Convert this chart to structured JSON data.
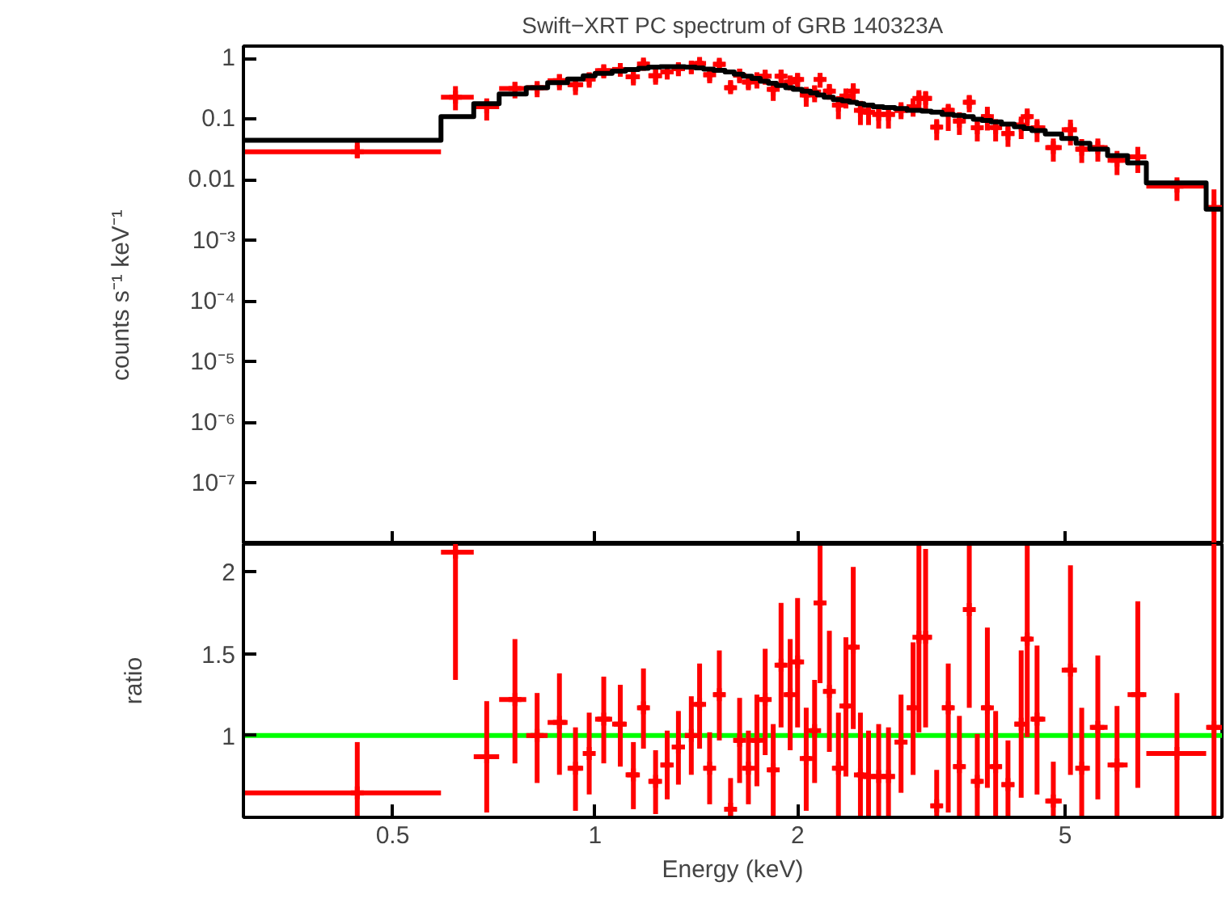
{
  "chart_data": [
    {
      "type": "scatter",
      "title": "Swift−XRT PC spectrum of GRB 140323A",
      "ylabel": "counts s⁻¹ keV⁻¹",
      "log": "xy",
      "grid": false,
      "tick_labels": "y",
      "xlim": [
        0.3,
        8.55
      ],
      "xticks": [
        0.5,
        1,
        2,
        5
      ],
      "ylim": [
        1e-08,
        1.6
      ],
      "yticks": [
        1,
        0.1,
        0.01,
        {
          "value": 0.001,
          "label": "10⁻³"
        },
        {
          "value": 0.0001,
          "label": "10⁻⁴"
        },
        {
          "value": 1e-05,
          "label": "10⁻⁵"
        },
        {
          "value": 1e-06,
          "label": "10⁻⁶"
        },
        {
          "value": 1e-07,
          "label": "10⁻⁷"
        }
      ],
      "x": [
        0.443,
        0.62,
        0.69,
        0.76,
        0.82,
        0.885,
        0.935,
        0.98,
        1.03,
        1.09,
        1.14,
        1.18,
        1.23,
        1.28,
        1.33,
        1.39,
        1.43,
        1.48,
        1.53,
        1.59,
        1.64,
        1.69,
        1.74,
        1.79,
        1.84,
        1.89,
        1.95,
        2.0,
        2.06,
        2.12,
        2.16,
        2.23,
        2.3,
        2.36,
        2.42,
        2.48,
        2.55,
        2.64,
        2.73,
        2.85,
        2.97,
        3.03,
        3.1,
        3.22,
        3.35,
        3.48,
        3.6,
        3.7,
        3.83,
        3.94,
        4.11,
        4.3,
        4.39,
        4.54,
        4.8,
        5.09,
        5.29,
        5.59,
        5.97,
        6.41,
        7.33,
        8.32
      ],
      "series": [
        {
          "color": "#ff0000",
          "marker": "cross",
          "values": [
            0.029,
            0.23,
            0.16,
            0.32,
            0.33,
            0.43,
            0.37,
            0.46,
            0.63,
            0.66,
            0.5,
            0.81,
            0.52,
            0.6,
            0.68,
            0.72,
            0.83,
            0.54,
            0.8,
            0.33,
            0.53,
            0.41,
            0.46,
            0.51,
            0.31,
            0.51,
            0.41,
            0.45,
            0.25,
            0.28,
            0.45,
            0.29,
            0.17,
            0.24,
            0.29,
            0.14,
            0.13,
            0.12,
            0.12,
            0.14,
            0.16,
            0.22,
            0.22,
            0.074,
            0.14,
            0.093,
            0.19,
            0.072,
            0.11,
            0.073,
            0.058,
            0.08,
            0.11,
            0.072,
            0.034,
            0.067,
            0.032,
            0.034,
            0.021,
            0.024,
            0.0079,
            0.0035
          ],
          "errors": [
            [
              0.023,
              0.043
            ],
            [
              0.14,
              0.35
            ],
            [
              0.095,
              0.22
            ],
            [
              0.22,
              0.41
            ],
            [
              0.23,
              0.42
            ],
            [
              0.3,
              0.55
            ],
            [
              0.25,
              0.48
            ],
            [
              0.33,
              0.59
            ],
            [
              0.47,
              0.78
            ],
            [
              0.5,
              0.81
            ],
            [
              0.36,
              0.63
            ],
            [
              0.63,
              0.97
            ],
            [
              0.37,
              0.66
            ],
            [
              0.45,
              0.75
            ],
            [
              0.51,
              0.84
            ],
            [
              0.55,
              0.89
            ],
            [
              0.64,
              1.0
            ],
            [
              0.39,
              0.68
            ],
            [
              0.62,
              0.97
            ],
            [
              0.27,
              0.44
            ],
            [
              0.39,
              0.68
            ],
            [
              0.3,
              0.53
            ],
            [
              0.32,
              0.59
            ],
            [
              0.37,
              0.64
            ],
            [
              0.2,
              0.42
            ],
            [
              0.38,
              0.65
            ],
            [
              0.3,
              0.52
            ],
            [
              0.33,
              0.57
            ],
            [
              0.16,
              0.34
            ],
            [
              0.19,
              0.36
            ],
            [
              0.33,
              0.57
            ],
            [
              0.21,
              0.38
            ],
            [
              0.1,
              0.24
            ],
            [
              0.15,
              0.32
            ],
            [
              0.2,
              0.39
            ],
            [
              0.08,
              0.2
            ],
            [
              0.08,
              0.18
            ],
            [
              0.07,
              0.17
            ],
            [
              0.07,
              0.16
            ],
            [
              0.1,
              0.19
            ],
            [
              0.11,
              0.22
            ],
            [
              0.14,
              0.3
            ],
            [
              0.14,
              0.29
            ],
            [
              0.045,
              0.1
            ],
            [
              0.064,
              0.17
            ],
            [
              0.055,
              0.13
            ],
            [
              0.13,
              0.25
            ],
            [
              0.043,
              0.1
            ],
            [
              0.065,
              0.16
            ],
            [
              0.043,
              0.1
            ],
            [
              0.035,
              0.08
            ],
            [
              0.047,
              0.11
            ],
            [
              0.07,
              0.15
            ],
            [
              0.042,
              0.1
            ],
            [
              0.02,
              0.048
            ],
            [
              0.037,
              0.098
            ],
            [
              0.019,
              0.047
            ],
            [
              0.02,
              0.048
            ],
            [
              0.012,
              0.03
            ],
            [
              0.013,
              0.035
            ],
            [
              0.0045,
              0.011
            ],
            [
              1e-08,
              0.007
            ]
          ],
          "xerrors": [
            [
              0.3,
              0.59
            ],
            [
              0.59,
              0.66
            ],
            [
              0.66,
              0.72
            ],
            [
              0.72,
              0.79
            ],
            [
              0.79,
              0.85
            ],
            [
              0.85,
              0.91
            ],
            [
              0.91,
              0.96
            ],
            [
              0.96,
              1.0
            ],
            [
              1.0,
              1.06
            ],
            [
              1.06,
              1.11
            ],
            [
              1.11,
              1.16
            ],
            [
              1.16,
              1.2
            ],
            [
              1.2,
              1.25
            ],
            [
              1.25,
              1.3
            ],
            [
              1.3,
              1.36
            ],
            [
              1.36,
              1.41
            ],
            [
              1.41,
              1.45
            ],
            [
              1.45,
              1.5
            ],
            [
              1.5,
              1.56
            ],
            [
              1.56,
              1.61
            ],
            [
              1.61,
              1.66
            ],
            [
              1.66,
              1.71
            ],
            [
              1.71,
              1.76
            ],
            [
              1.76,
              1.81
            ],
            [
              1.81,
              1.86
            ],
            [
              1.86,
              1.92
            ],
            [
              1.92,
              1.97
            ],
            [
              1.97,
              2.03
            ],
            [
              2.03,
              2.09
            ],
            [
              2.09,
              2.14
            ],
            [
              2.14,
              2.19
            ],
            [
              2.19,
              2.26
            ],
            [
              2.26,
              2.33
            ],
            [
              2.33,
              2.39
            ],
            [
              2.39,
              2.45
            ],
            [
              2.45,
              2.51
            ],
            [
              2.51,
              2.59
            ],
            [
              2.59,
              2.68
            ],
            [
              2.68,
              2.79
            ],
            [
              2.79,
              2.91
            ],
            [
              2.91,
              3.0
            ],
            [
              3.0,
              3.06
            ],
            [
              3.06,
              3.16
            ],
            [
              3.16,
              3.28
            ],
            [
              3.28,
              3.41
            ],
            [
              3.41,
              3.54
            ],
            [
              3.54,
              3.65
            ],
            [
              3.65,
              3.76
            ],
            [
              3.76,
              3.88
            ],
            [
              3.88,
              4.02
            ],
            [
              4.02,
              4.2
            ],
            [
              4.2,
              4.34
            ],
            [
              4.34,
              4.46
            ],
            [
              4.46,
              4.67
            ],
            [
              4.67,
              4.94
            ],
            [
              4.94,
              5.19
            ],
            [
              5.19,
              5.44
            ],
            [
              5.44,
              5.78
            ],
            [
              5.78,
              6.19
            ],
            [
              6.19,
              6.6
            ],
            [
              6.6,
              8.1
            ],
            [
              8.1,
              8.55
            ]
          ]
        },
        {
          "type": "step",
          "color": "#000000",
          "x": [
            0.3,
            0.59,
            0.66,
            0.72,
            0.79,
            0.85,
            0.91,
            0.96,
            1.0,
            1.06,
            1.11,
            1.16,
            1.2,
            1.25,
            1.3,
            1.36,
            1.41,
            1.45,
            1.5,
            1.56,
            1.61,
            1.66,
            1.71,
            1.76,
            1.81,
            1.86,
            1.92,
            1.97,
            2.03,
            2.09,
            2.14,
            2.19,
            2.26,
            2.33,
            2.39,
            2.45,
            2.51,
            2.59,
            2.68,
            2.79,
            2.91,
            3.0,
            3.06,
            3.16,
            3.28,
            3.41,
            3.54,
            3.65,
            3.76,
            3.88,
            4.02,
            4.2,
            4.34,
            4.46,
            4.67,
            4.94,
            5.19,
            5.44,
            5.78,
            6.19,
            6.6,
            8.1,
            8.55
          ],
          "values": [
            0.045,
            0.11,
            0.18,
            0.26,
            0.33,
            0.4,
            0.46,
            0.52,
            0.57,
            0.62,
            0.66,
            0.69,
            0.72,
            0.73,
            0.73,
            0.72,
            0.7,
            0.67,
            0.64,
            0.6,
            0.55,
            0.51,
            0.47,
            0.42,
            0.39,
            0.36,
            0.33,
            0.31,
            0.29,
            0.27,
            0.25,
            0.23,
            0.21,
            0.2,
            0.19,
            0.18,
            0.17,
            0.16,
            0.155,
            0.15,
            0.14,
            0.14,
            0.135,
            0.13,
            0.12,
            0.115,
            0.11,
            0.1,
            0.095,
            0.09,
            0.083,
            0.075,
            0.07,
            0.065,
            0.057,
            0.048,
            0.04,
            0.032,
            0.025,
            0.019,
            0.0089,
            0.0033,
            0.0033
          ]
        }
      ]
    },
    {
      "type": "scatter",
      "xlabel": "Energy (keV)",
      "ylabel": "ratio",
      "log": "x",
      "grid": false,
      "marker": "cross",
      "xlim": [
        0.3,
        8.55
      ],
      "xticks": [
        0.5,
        1,
        2,
        5
      ],
      "ylim": [
        0.5,
        2.17
      ],
      "yticks": [
        1,
        1.5,
        2
      ],
      "ref_lines": [
        {
          "axis": "y",
          "value": 1,
          "color": "#00ff00"
        }
      ],
      "x": [
        0.443,
        0.62,
        0.69,
        0.76,
        0.82,
        0.885,
        0.935,
        0.98,
        1.03,
        1.09,
        1.14,
        1.18,
        1.23,
        1.28,
        1.33,
        1.39,
        1.43,
        1.48,
        1.53,
        1.59,
        1.64,
        1.69,
        1.74,
        1.79,
        1.84,
        1.89,
        1.95,
        2.0,
        2.06,
        2.12,
        2.16,
        2.23,
        2.3,
        2.36,
        2.42,
        2.48,
        2.55,
        2.64,
        2.73,
        2.85,
        2.97,
        3.03,
        3.1,
        3.22,
        3.35,
        3.48,
        3.6,
        3.7,
        3.83,
        3.94,
        4.11,
        4.3,
        4.39,
        4.54,
        4.8,
        5.09,
        5.29,
        5.59,
        5.97,
        6.41,
        7.33,
        8.32
      ],
      "series": [
        {
          "color": "#ff0000",
          "values": [
            0.65,
            2.12,
            0.87,
            1.22,
            1.0,
            1.08,
            0.8,
            0.89,
            1.1,
            1.07,
            0.76,
            1.17,
            0.72,
            0.82,
            0.93,
            1.0,
            1.19,
            0.8,
            1.25,
            0.55,
            0.97,
            0.8,
            0.97,
            1.22,
            0.79,
            1.43,
            1.25,
            1.45,
            0.86,
            1.03,
            1.81,
            1.27,
            0.8,
            1.18,
            1.54,
            0.76,
            0.75,
            0.75,
            0.75,
            0.96,
            1.17,
            1.6,
            1.6,
            0.57,
            1.17,
            0.81,
            1.77,
            0.72,
            1.17,
            0.81,
            0.7,
            1.07,
            1.59,
            1.1,
            0.6,
            1.4,
            0.8,
            1.05,
            0.82,
            1.25,
            0.89,
            1.05
          ],
          "errors": [
            [
              0.5,
              0.96
            ],
            [
              1.34,
              2.17
            ],
            [
              0.53,
              1.21
            ],
            [
              0.83,
              1.59
            ],
            [
              0.71,
              1.26
            ],
            [
              0.76,
              1.38
            ],
            [
              0.54,
              1.05
            ],
            [
              0.64,
              1.14
            ],
            [
              0.83,
              1.36
            ],
            [
              0.81,
              1.31
            ],
            [
              0.55,
              0.96
            ],
            [
              0.92,
              1.41
            ],
            [
              0.52,
              0.91
            ],
            [
              0.61,
              1.03
            ],
            [
              0.7,
              1.15
            ],
            [
              0.76,
              1.24
            ],
            [
              0.92,
              1.44
            ],
            [
              0.58,
              1.02
            ],
            [
              0.97,
              1.52
            ],
            [
              0.5,
              0.74
            ],
            [
              0.71,
              1.23
            ],
            [
              0.58,
              1.03
            ],
            [
              0.69,
              1.25
            ],
            [
              0.88,
              1.53
            ],
            [
              0.51,
              1.07
            ],
            [
              1.05,
              1.81
            ],
            [
              0.91,
              1.59
            ],
            [
              1.05,
              1.84
            ],
            [
              0.54,
              1.17
            ],
            [
              0.71,
              1.34
            ],
            [
              1.32,
              2.16
            ],
            [
              0.9,
              1.64
            ],
            [
              0.5,
              1.14
            ],
            [
              0.75,
              1.6
            ],
            [
              1.04,
              2.03
            ],
            [
              0.5,
              1.14
            ],
            [
              0.5,
              1.03
            ],
            [
              0.5,
              1.07
            ],
            [
              0.5,
              1.05
            ],
            [
              0.65,
              1.25
            ],
            [
              0.76,
              1.57
            ],
            [
              1.02,
              2.16
            ],
            [
              1.05,
              2.14
            ],
            [
              0.5,
              0.79
            ],
            [
              0.53,
              1.44
            ],
            [
              0.5,
              1.12
            ],
            [
              1.17,
              2.16
            ],
            [
              0.5,
              1.01
            ],
            [
              0.68,
              1.66
            ],
            [
              0.5,
              1.15
            ],
            [
              0.5,
              0.97
            ],
            [
              0.62,
              1.52
            ],
            [
              0.99,
              2.16
            ],
            [
              0.64,
              1.55
            ],
            [
              0.5,
              0.84
            ],
            [
              0.76,
              2.04
            ],
            [
              0.5,
              1.17
            ],
            [
              0.61,
              1.49
            ],
            [
              0.5,
              1.18
            ],
            [
              0.68,
              1.82
            ],
            [
              0.51,
              1.26
            ],
            [
              0.5,
              2.17
            ]
          ],
          "xerrors": [
            [
              0.3,
              0.59
            ],
            [
              0.59,
              0.66
            ],
            [
              0.66,
              0.72
            ],
            [
              0.72,
              0.79
            ],
            [
              0.79,
              0.85
            ],
            [
              0.85,
              0.91
            ],
            [
              0.91,
              0.96
            ],
            [
              0.96,
              1.0
            ],
            [
              1.0,
              1.06
            ],
            [
              1.06,
              1.11
            ],
            [
              1.11,
              1.16
            ],
            [
              1.16,
              1.2
            ],
            [
              1.2,
              1.25
            ],
            [
              1.25,
              1.3
            ],
            [
              1.3,
              1.36
            ],
            [
              1.36,
              1.41
            ],
            [
              1.41,
              1.45
            ],
            [
              1.45,
              1.5
            ],
            [
              1.5,
              1.56
            ],
            [
              1.56,
              1.61
            ],
            [
              1.61,
              1.66
            ],
            [
              1.66,
              1.71
            ],
            [
              1.71,
              1.76
            ],
            [
              1.76,
              1.81
            ],
            [
              1.81,
              1.86
            ],
            [
              1.86,
              1.92
            ],
            [
              1.92,
              1.97
            ],
            [
              1.97,
              2.03
            ],
            [
              2.03,
              2.09
            ],
            [
              2.09,
              2.14
            ],
            [
              2.14,
              2.19
            ],
            [
              2.19,
              2.26
            ],
            [
              2.26,
              2.33
            ],
            [
              2.33,
              2.39
            ],
            [
              2.39,
              2.45
            ],
            [
              2.45,
              2.51
            ],
            [
              2.51,
              2.59
            ],
            [
              2.59,
              2.68
            ],
            [
              2.68,
              2.79
            ],
            [
              2.79,
              2.91
            ],
            [
              2.91,
              3.0
            ],
            [
              3.0,
              3.06
            ],
            [
              3.06,
              3.16
            ],
            [
              3.16,
              3.28
            ],
            [
              3.28,
              3.41
            ],
            [
              3.41,
              3.54
            ],
            [
              3.54,
              3.65
            ],
            [
              3.65,
              3.76
            ],
            [
              3.76,
              3.88
            ],
            [
              3.88,
              4.02
            ],
            [
              4.02,
              4.2
            ],
            [
              4.2,
              4.34
            ],
            [
              4.34,
              4.46
            ],
            [
              4.46,
              4.67
            ],
            [
              4.67,
              4.94
            ],
            [
              4.94,
              5.19
            ],
            [
              5.19,
              5.44
            ],
            [
              5.44,
              5.78
            ],
            [
              5.78,
              6.19
            ],
            [
              6.19,
              6.6
            ],
            [
              6.6,
              8.1
            ],
            [
              8.1,
              8.55
            ]
          ]
        }
      ]
    }
  ]
}
